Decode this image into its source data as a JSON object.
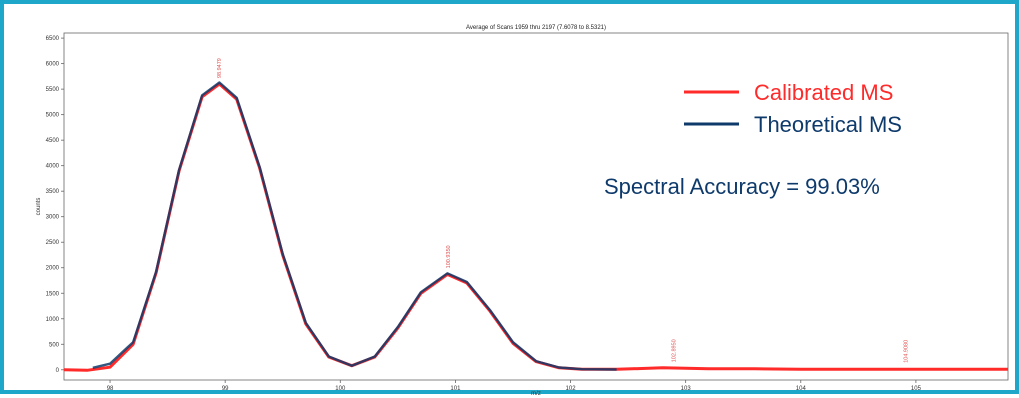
{
  "chart_data": {
    "type": "line",
    "title": "Average of Scans 1959 thru 2197 (7.6078 to 8.5321)",
    "xlabel": "m/z",
    "ylabel": "counts",
    "xlim": [
      97.6,
      105.8
    ],
    "ylim": [
      -200,
      6600
    ],
    "x_ticks": [
      98,
      99,
      100,
      101,
      102,
      103,
      104,
      105
    ],
    "y_ticks": [
      0,
      500,
      1000,
      1500,
      2000,
      2500,
      3000,
      3500,
      4000,
      4500,
      5000,
      5500,
      6000,
      6500
    ],
    "peaks": [
      {
        "x": 98.9479,
        "y": 5600,
        "label": "98.9479"
      },
      {
        "x": 100.935,
        "y": 1870,
        "label": "100.9350"
      },
      {
        "x": 102.895,
        "y": 30,
        "label": "102.8950"
      },
      {
        "x": 104.908,
        "y": 20,
        "label": "104.9080"
      }
    ],
    "series": [
      {
        "name": "Calibrated MS",
        "color": "#ff2a2a",
        "x": [
          97.6,
          97.8,
          98.0,
          98.2,
          98.4,
          98.6,
          98.8,
          98.95,
          99.1,
          99.3,
          99.5,
          99.7,
          99.9,
          100.1,
          100.3,
          100.5,
          100.7,
          100.93,
          101.1,
          101.3,
          101.5,
          101.7,
          101.9,
          102.1,
          102.4,
          102.8,
          103.2,
          103.6,
          104.0,
          104.5,
          105.0,
          105.8
        ],
        "y": [
          0,
          -10,
          50,
          500,
          1900,
          3900,
          5350,
          5600,
          5300,
          3950,
          2250,
          900,
          250,
          80,
          250,
          820,
          1500,
          1870,
          1700,
          1150,
          520,
          160,
          40,
          10,
          10,
          40,
          20,
          20,
          10,
          10,
          10,
          10
        ]
      },
      {
        "name": "Theoretical MS",
        "color": "#0e3a6b",
        "x": [
          97.85,
          98.0,
          98.2,
          98.4,
          98.6,
          98.8,
          98.95,
          99.1,
          99.3,
          99.5,
          99.7,
          99.9,
          100.1,
          100.3,
          100.5,
          100.7,
          100.93,
          101.1,
          101.3,
          101.5,
          101.7,
          101.9,
          102.1,
          102.4
        ],
        "y": [
          40,
          120,
          540,
          1920,
          3920,
          5380,
          5630,
          5330,
          3970,
          2270,
          920,
          260,
          80,
          260,
          840,
          1520,
          1890,
          1720,
          1170,
          540,
          170,
          45,
          12,
          5
        ]
      }
    ],
    "legend": {
      "placement": "top-right",
      "entries": [
        {
          "label": "Calibrated MS",
          "color": "#ff2a2a"
        },
        {
          "label": "Theoretical MS",
          "color": "#0e3a6b"
        }
      ]
    },
    "annotation": "Spectral Accuracy = 99.03%",
    "grid": false
  },
  "colors": {
    "frame_border": "#1fa7c9",
    "peak_label": "#e05555",
    "accuracy_text": "#0e3a6b"
  }
}
